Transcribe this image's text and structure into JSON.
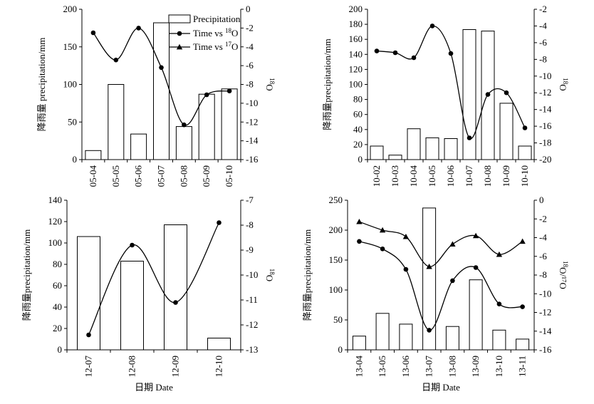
{
  "chart_data": [
    {
      "type": "bar",
      "categories": [
        "05-04",
        "05-05",
        "05-06",
        "05-07",
        "05-08",
        "05-09",
        "05-10"
      ],
      "bar_series": {
        "name": "Precipitation",
        "values": [
          12,
          100,
          34,
          182,
          44,
          87,
          94
        ]
      },
      "ylabel": "降雨量 precipitation/mm",
      "ylim": [
        0,
        200
      ],
      "yticks": [
        "0",
        "50",
        "100",
        "150",
        "200"
      ],
      "y2label_sup": "18",
      "y2label_main": "O",
      "y2lim": [
        -16,
        0
      ],
      "y2ticks": [
        "0",
        "-2",
        "-4",
        "-6",
        "-8",
        "-10",
        "-12",
        "-14",
        "-16"
      ],
      "line_series": [
        {
          "name": "Time vs ¹⁸O",
          "marker": "circle",
          "values": [
            -2.5,
            -5.4,
            -2.0,
            -6.2,
            -12.3,
            -9.1,
            -8.7
          ]
        }
      ],
      "xlabel": "",
      "legend": {
        "position": "top-right",
        "items": [
          {
            "kind": "bar",
            "text": "Precipitation"
          },
          {
            "kind": "circle",
            "prefix": "Time vs ",
            "sup": "18",
            "suffix": "O"
          },
          {
            "kind": "triangle",
            "prefix": "Time vs ",
            "sup": "17",
            "suffix": "O"
          }
        ]
      }
    },
    {
      "type": "bar",
      "categories": [
        "10-02",
        "10-03",
        "10-04",
        "10-05",
        "10-06",
        "10-07",
        "10-08",
        "10-09",
        "10-10"
      ],
      "bar_series": {
        "name": "Precipitation",
        "values": [
          18,
          6,
          41,
          29,
          28,
          173,
          171,
          75,
          18
        ]
      },
      "ylabel": "降雨量precipitation/mm",
      "ylim": [
        0,
        200
      ],
      "yticks": [
        "0",
        "20",
        "40",
        "60",
        "80",
        "100",
        "120",
        "140",
        "160",
        "180",
        "200"
      ],
      "y2label_sup": "18",
      "y2label_main": "O",
      "y2lim": [
        -20,
        -2
      ],
      "y2ticks": [
        "-2",
        "-4",
        "-6",
        "-8",
        "-10",
        "-12",
        "-14",
        "-16",
        "-18",
        "-20"
      ],
      "line_series": [
        {
          "name": "Time vs ¹⁸O",
          "marker": "circle",
          "values": [
            -7.0,
            -7.2,
            -7.8,
            -4.0,
            -7.3,
            -17.4,
            -12.2,
            -12.0,
            -16.2
          ]
        }
      ],
      "xlabel": ""
    },
    {
      "type": "bar",
      "categories": [
        "12-07",
        "12-08",
        "12-09",
        "12-10"
      ],
      "bar_series": {
        "name": "Precipitation",
        "values": [
          106,
          83,
          117,
          11
        ]
      },
      "ylabel": "降雨量precipitation/mm",
      "ylim": [
        0,
        140
      ],
      "yticks": [
        "0",
        "20",
        "40",
        "60",
        "80",
        "100",
        "120",
        "140"
      ],
      "y2label_sup": "18",
      "y2label_main": "O",
      "y2lim": [
        -13,
        -7
      ],
      "y2ticks": [
        "-7",
        "-8",
        "-9",
        "-10",
        "-11",
        "-12",
        "-13"
      ],
      "line_series": [
        {
          "name": "Time vs ¹⁸O",
          "marker": "circle",
          "values": [
            -12.4,
            -8.8,
            -11.1,
            -7.9
          ]
        }
      ],
      "xlabel": "日期 Date"
    },
    {
      "type": "bar",
      "categories": [
        "13-04",
        "13-05",
        "13-06",
        "13-07",
        "13-08",
        "13-09",
        "13-10",
        "13-11"
      ],
      "bar_series": {
        "name": "Precipitation",
        "values": [
          23,
          61,
          43,
          237,
          39,
          117,
          33,
          18
        ]
      },
      "ylabel": "降雨量precipitation/mm",
      "ylim": [
        0,
        250
      ],
      "yticks": [
        "0",
        "50",
        "100",
        "150",
        "200",
        "250"
      ],
      "y2label_sup": "18",
      "y2label_main": "O/¹⁷O",
      "y2lim": [
        -16,
        0
      ],
      "y2ticks": [
        "0",
        "-2",
        "-4",
        "-6",
        "-8",
        "-10",
        "-12",
        "-14",
        "-16"
      ],
      "line_series": [
        {
          "name": "Time vs ¹⁸O",
          "marker": "circle",
          "values": [
            -4.4,
            -5.2,
            -7.4,
            -13.9,
            -8.6,
            -7.2,
            -11.1,
            -11.4
          ]
        },
        {
          "name": "Time vs ¹⁷O",
          "marker": "triangle",
          "values": [
            -2.3,
            -3.2,
            -3.9,
            -7.1,
            -4.7,
            -3.8,
            -5.8,
            -4.4
          ]
        }
      ],
      "xlabel": "日期 Date"
    }
  ]
}
